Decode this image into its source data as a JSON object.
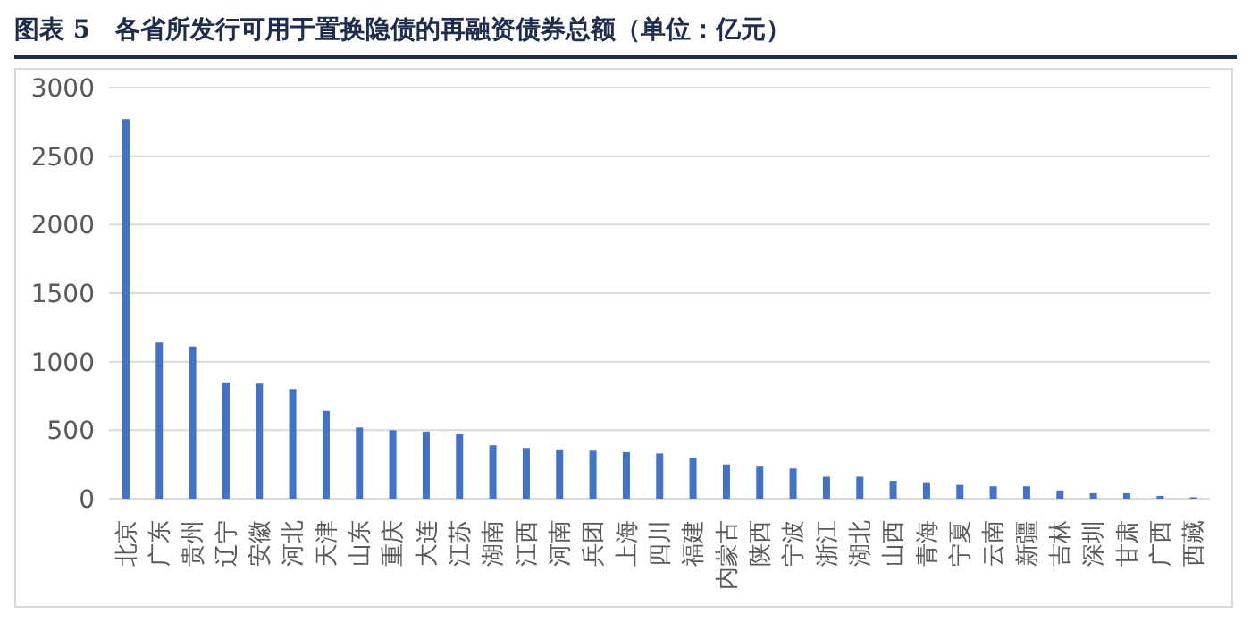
{
  "chart_data": {
    "type": "bar",
    "title": "图表 5　各省所发行可用于置换隐债的再融资债券总额（单位：亿元）",
    "categories": [
      "北京",
      "广东",
      "贵州",
      "辽宁",
      "安徽",
      "河北",
      "天津",
      "山东",
      "重庆",
      "大连",
      "江苏",
      "湖南",
      "江西",
      "河南",
      "兵团",
      "上海",
      "四川",
      "福建",
      "内蒙古",
      "陕西",
      "宁波",
      "浙江",
      "湖北",
      "山西",
      "青海",
      "宁夏",
      "云南",
      "新疆",
      "吉林",
      "深圳",
      "甘肃",
      "广西",
      "西藏"
    ],
    "values": [
      2770,
      1140,
      1110,
      850,
      840,
      800,
      640,
      520,
      500,
      490,
      470,
      390,
      370,
      360,
      350,
      340,
      330,
      300,
      250,
      240,
      220,
      160,
      160,
      130,
      120,
      100,
      90,
      90,
      60,
      40,
      40,
      20,
      10
    ],
    "color": "#4472c4",
    "ylim": [
      0,
      3000
    ],
    "yticks": [
      0,
      500,
      1000,
      1500,
      2000,
      2500,
      3000
    ],
    "grid": "y"
  }
}
